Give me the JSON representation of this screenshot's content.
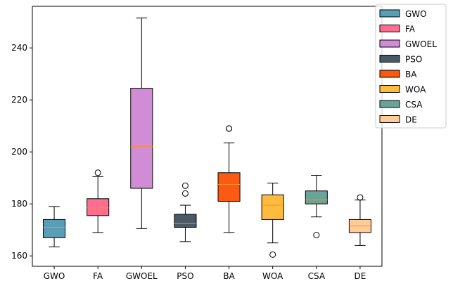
{
  "chart_data": {
    "type": "boxplot",
    "title": "",
    "xlabel": "",
    "ylabel": "",
    "ylim": [
      156,
      256
    ],
    "yticks": [
      160,
      180,
      200,
      220,
      240
    ],
    "grid": false,
    "legend_placement": "outside-top-right",
    "median_color": "#ff8c2a",
    "categories": [
      "GWO",
      "FA",
      "GWOEL",
      "PSO",
      "BA",
      "WOA",
      "CSA",
      "DE"
    ],
    "series": [
      {
        "name": "GWO",
        "color": "#5a9eb5",
        "whisker_low": 163.5,
        "q1": 167.0,
        "median": 171.0,
        "q3": 174.0,
        "whisker_high": 179.0,
        "outliers": []
      },
      {
        "name": "FA",
        "color": "#ff6e8f",
        "whisker_low": 169.0,
        "q1": 175.5,
        "median": 178.5,
        "q3": 182.0,
        "whisker_high": 190.5,
        "outliers": [
          192.0
        ]
      },
      {
        "name": "GWOEL",
        "color": "#d18cd6",
        "whisker_low": 170.5,
        "q1": 186.0,
        "median": 202.0,
        "q3": 224.5,
        "whisker_high": 251.5,
        "outliers": []
      },
      {
        "name": "PSO",
        "color": "#485a68",
        "whisker_low": 165.5,
        "q1": 171.0,
        "median": 172.5,
        "q3": 176.0,
        "whisker_high": 179.5,
        "outliers": [
          184.0,
          187.0
        ]
      },
      {
        "name": "BA",
        "color": "#fa5a14",
        "whisker_low": 169.0,
        "q1": 181.0,
        "median": 187.5,
        "q3": 192.0,
        "whisker_high": 203.5,
        "outliers": [
          209.0,
          209.0
        ]
      },
      {
        "name": "WOA",
        "color": "#ffbb3d",
        "whisker_low": 165.0,
        "q1": 174.0,
        "median": 179.5,
        "q3": 183.5,
        "whisker_high": 188.0,
        "outliers": [
          160.5
        ]
      },
      {
        "name": "CSA",
        "color": "#6aa398",
        "whisker_low": 175.0,
        "q1": 180.0,
        "median": 181.5,
        "q3": 185.0,
        "whisker_high": 191.0,
        "outliers": [
          168.0
        ]
      },
      {
        "name": "DE",
        "color": "#ffcc99",
        "whisker_low": 164.0,
        "q1": 169.0,
        "median": 171.5,
        "q3": 174.0,
        "whisker_high": 181.5,
        "outliers": [
          182.5
        ]
      }
    ]
  }
}
